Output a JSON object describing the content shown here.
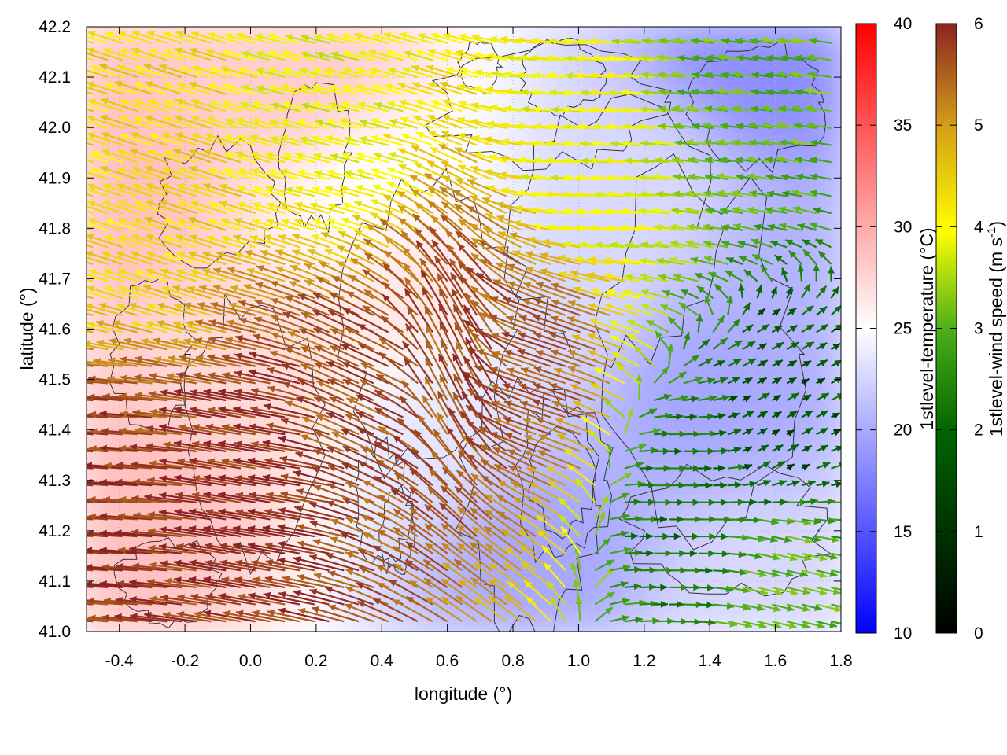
{
  "chart_data": {
    "type": "heatmap",
    "xlabel": "longitude (°)",
    "ylabel": "latitude (°)",
    "xlim": [
      -0.5,
      1.8
    ],
    "ylim": [
      41.0,
      42.2
    ],
    "x_ticks": [
      "-0.4",
      "-0.2",
      "0.0",
      "0.2",
      "0.4",
      "0.6",
      "0.8",
      "1.0",
      "1.2",
      "1.4",
      "1.6",
      "1.8"
    ],
    "x_tick_values": [
      -0.4,
      -0.2,
      0.0,
      0.2,
      0.4,
      0.6,
      0.8,
      1.0,
      1.2,
      1.4,
      1.6,
      1.8
    ],
    "y_ticks": [
      "41.0",
      "41.1",
      "41.2",
      "41.3",
      "41.4",
      "41.5",
      "41.6",
      "41.7",
      "41.8",
      "41.9",
      "42.0",
      "42.1",
      "42.2"
    ],
    "y_tick_values": [
      41.0,
      41.1,
      41.2,
      41.3,
      41.4,
      41.5,
      41.6,
      41.7,
      41.8,
      41.9,
      42.0,
      42.1,
      42.2
    ],
    "grid": true,
    "contours": true,
    "colorbars": [
      {
        "label_main": "1stlevel-temperature (°C)",
        "label_sup": "",
        "label_tail": "",
        "range": [
          10,
          40
        ],
        "ticks": [
          "10",
          "15",
          "20",
          "25",
          "30",
          "35",
          "40"
        ],
        "tick_values": [
          10,
          15,
          20,
          25,
          30,
          35,
          40
        ],
        "colors": [
          "#0000ff",
          "#ffffff",
          "#ff0000"
        ]
      },
      {
        "label_main": "1stlevel-wind speed (m s",
        "label_sup": "-1",
        "label_tail": ")",
        "range": [
          0,
          6
        ],
        "ticks": [
          "0",
          "1",
          "2",
          "3",
          "4",
          "5",
          "6"
        ],
        "tick_values": [
          0,
          1,
          2,
          3,
          4,
          5,
          6
        ],
        "colors": [
          "#000000",
          "#006400",
          "#4caf1a",
          "#ffff00",
          "#d4a017",
          "#8b2323"
        ]
      }
    ],
    "temperature_field": {
      "description_units": "°C",
      "samples": [
        {
          "lon": -0.4,
          "lat": 41.9,
          "value": 30
        },
        {
          "lon": -0.3,
          "lat": 41.3,
          "value": 30
        },
        {
          "lon": 0.0,
          "lat": 41.5,
          "value": 28
        },
        {
          "lon": 0.2,
          "lat": 42.1,
          "value": 29
        },
        {
          "lon": 0.4,
          "lat": 41.9,
          "value": 25
        },
        {
          "lon": 0.55,
          "lat": 41.7,
          "value": 27
        },
        {
          "lon": 0.6,
          "lat": 41.4,
          "value": 23
        },
        {
          "lon": 0.9,
          "lat": 41.2,
          "value": 18
        },
        {
          "lon": 1.0,
          "lat": 41.7,
          "value": 22
        },
        {
          "lon": 1.2,
          "lat": 41.9,
          "value": 22
        },
        {
          "lon": 1.4,
          "lat": 41.5,
          "value": 18
        },
        {
          "lon": 1.6,
          "lat": 42.15,
          "value": 16
        },
        {
          "lon": 1.7,
          "lat": 41.7,
          "value": 19
        },
        {
          "lon": 1.6,
          "lat": 41.1,
          "value": 22
        }
      ]
    },
    "wind_vectors": {
      "units": "m s-1",
      "samples": [
        {
          "lon": -0.4,
          "lat": 41.3,
          "u": -4.5,
          "v": 0.3,
          "speed": 5.8
        },
        {
          "lon": 0.1,
          "lat": 41.3,
          "u": -4.8,
          "v": 0.8,
          "speed": 5.9
        },
        {
          "lon": 0.4,
          "lat": 41.45,
          "u": -3.5,
          "v": 1.6,
          "speed": 5.5
        },
        {
          "lon": 0.65,
          "lat": 41.5,
          "u": -1.5,
          "v": 3.0,
          "speed": 5.6
        },
        {
          "lon": 0.9,
          "lat": 41.5,
          "u": -3.0,
          "v": 1.0,
          "speed": 5.5
        },
        {
          "lon": -0.3,
          "lat": 41.8,
          "u": -3.0,
          "v": 1.0,
          "speed": 4.0
        },
        {
          "lon": 0.3,
          "lat": 42.0,
          "u": -2.0,
          "v": 0.5,
          "speed": 3.5
        },
        {
          "lon": 1.1,
          "lat": 41.95,
          "u": -3.2,
          "v": 0.2,
          "speed": 3.5
        },
        {
          "lon": 1.5,
          "lat": 42.1,
          "u": -2.0,
          "v": 0.3,
          "speed": 2.5
        },
        {
          "lon": 1.3,
          "lat": 41.25,
          "u": 1.5,
          "v": 0.0,
          "speed": 1.5
        },
        {
          "lon": 1.6,
          "lat": 41.1,
          "u": 1.2,
          "v": -0.3,
          "speed": 2.5
        },
        {
          "lon": 1.6,
          "lat": 41.4,
          "u": 0.5,
          "v": 0.3,
          "speed": 1.0
        }
      ]
    }
  }
}
